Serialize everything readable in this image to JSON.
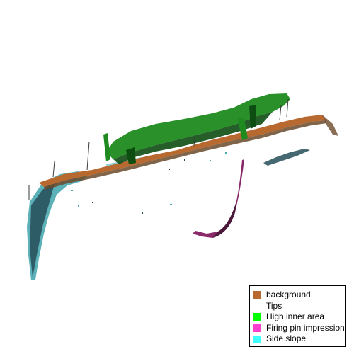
{
  "legend": {
    "items": [
      {
        "label": "background",
        "color": "#b8692f"
      },
      {
        "label": "Tips",
        "color": "#ffffff"
      },
      {
        "label": "High inner area",
        "color": "#00ff00"
      },
      {
        "label": "Firing pin impression",
        "color": "#ff3fcf"
      },
      {
        "label": "Side slope",
        "color": "#40ffff"
      }
    ]
  },
  "colors": {
    "background": "#b8692f",
    "background_dark": "#6b4a2a",
    "high_inner": "#1f8a1f",
    "high_inner_dark": "#0d4d12",
    "firing_pin": "#8a2a6a",
    "firing_pin_dark": "#4a1838",
    "side_slope": "#4aa8b0",
    "side_slope_dark": "#244e58",
    "spikes": "#3a3a3a"
  }
}
